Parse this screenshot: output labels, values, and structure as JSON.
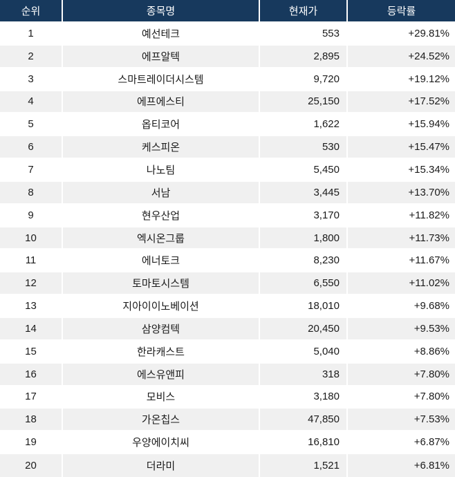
{
  "table": {
    "columns": [
      "순위",
      "종목명",
      "현재가",
      "등락률"
    ],
    "rows": [
      {
        "rank": "1",
        "name": "예선테크",
        "price": "553",
        "change": "+29.81%"
      },
      {
        "rank": "2",
        "name": "에프알텍",
        "price": "2,895",
        "change": "+24.52%"
      },
      {
        "rank": "3",
        "name": "스마트레이더시스템",
        "price": "9,720",
        "change": "+19.12%"
      },
      {
        "rank": "4",
        "name": "에프에스티",
        "price": "25,150",
        "change": "+17.52%"
      },
      {
        "rank": "5",
        "name": "옵티코어",
        "price": "1,622",
        "change": "+15.94%"
      },
      {
        "rank": "6",
        "name": "케스피온",
        "price": "530",
        "change": "+15.47%"
      },
      {
        "rank": "7",
        "name": "나노팀",
        "price": "5,450",
        "change": "+15.34%"
      },
      {
        "rank": "8",
        "name": "서남",
        "price": "3,445",
        "change": "+13.70%"
      },
      {
        "rank": "9",
        "name": "현우산업",
        "price": "3,170",
        "change": "+11.82%"
      },
      {
        "rank": "10",
        "name": "엑시온그룹",
        "price": "1,800",
        "change": "+11.73%"
      },
      {
        "rank": "11",
        "name": "에너토크",
        "price": "8,230",
        "change": "+11.67%"
      },
      {
        "rank": "12",
        "name": "토마토시스템",
        "price": "6,550",
        "change": "+11.02%"
      },
      {
        "rank": "13",
        "name": "지아이이노베이션",
        "price": "18,010",
        "change": "+9.68%"
      },
      {
        "rank": "14",
        "name": "삼양컴텍",
        "price": "20,450",
        "change": "+9.53%"
      },
      {
        "rank": "15",
        "name": "한라캐스트",
        "price": "5,040",
        "change": "+8.86%"
      },
      {
        "rank": "16",
        "name": "에스유앤피",
        "price": "318",
        "change": "+7.80%"
      },
      {
        "rank": "17",
        "name": "모비스",
        "price": "3,180",
        "change": "+7.80%"
      },
      {
        "rank": "18",
        "name": "가온칩스",
        "price": "47,850",
        "change": "+7.53%"
      },
      {
        "rank": "19",
        "name": "우양에이치씨",
        "price": "16,810",
        "change": "+6.87%"
      },
      {
        "rank": "20",
        "name": "더라미",
        "price": "1,521",
        "change": "+6.81%"
      }
    ]
  },
  "colors": {
    "header_bg": "#17395d",
    "header_text": "#ffffff",
    "row_bg": "#ffffff",
    "row_alt_bg": "#f0f0f0",
    "body_text": "#1a1a1a",
    "grid_line": "#ffffff"
  }
}
